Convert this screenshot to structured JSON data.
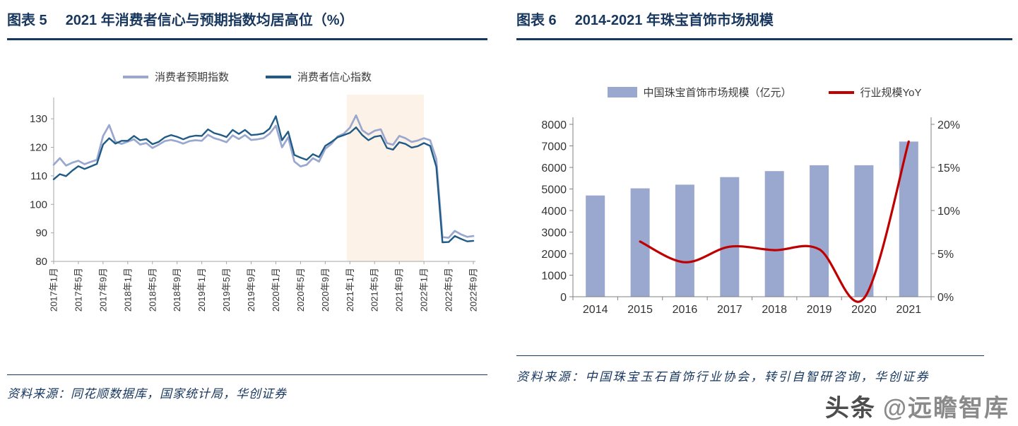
{
  "fig5": {
    "label": "图表 5",
    "title": "2021 年消费者信心与预期指数均居高位（%）",
    "source": "资料来源：同花顺数据库，国家统计局，华创证券"
  },
  "fig6": {
    "label": "图表 6",
    "title": "2014-2021 年珠宝首饰市场规模",
    "source": "资料来源：中国珠宝玉石首饰行业协会，转引自智研咨询，华创证券"
  },
  "watermark": {
    "brand": "头条",
    "handle": "@远瞻智库"
  },
  "chart_data": [
    {
      "type": "line",
      "title": "2021 年消费者信心与预期指数均居高位（%）",
      "x_description": "monthly, 2017-01 through 2022-09",
      "x_tick_every": 4,
      "x_tick_labels": [
        "2017年1月",
        "2017年5月",
        "2017年9月",
        "2018年1月",
        "2018年5月",
        "2018年9月",
        "2019年1月",
        "2019年5月",
        "2019年9月",
        "2020年1月",
        "2020年5月",
        "2020年9月",
        "2021年1月",
        "2021年5月",
        "2021年9月",
        "2022年1月",
        "2022年5月",
        "2022年9月"
      ],
      "y_ticks": [
        80,
        90,
        100,
        110,
        120,
        130
      ],
      "ylim": [
        80,
        135
      ],
      "grid": false,
      "legend_position": "top",
      "highlight_band": {
        "from_index": 47.5,
        "to_index": 60,
        "color": "#FDF2E7"
      },
      "axis_color": "#A6A6A6",
      "series": [
        {
          "name": "消费者预期指数",
          "color": "#9AA7CE",
          "values": [
            113.9,
            116.2,
            113.6,
            114.6,
            115.3,
            114.1,
            114.9,
            115.6,
            124.0,
            127.8,
            122.0,
            121.2,
            122.0,
            122.8,
            121.0,
            121.5,
            119.8,
            120.9,
            122.2,
            122.6,
            122.1,
            121.3,
            122.2,
            122.5,
            122.3,
            124.4,
            123.2,
            122.6,
            121.8,
            124.2,
            122.9,
            124.3,
            122.6,
            122.8,
            123.2,
            124.8,
            127.6,
            120.0,
            123.5,
            115.0,
            113.3,
            113.9,
            116.2,
            115.0,
            119.5,
            121.2,
            123.8,
            124.8,
            126.9,
            131.2,
            126.0,
            124.5,
            125.8,
            126.3,
            121.5,
            120.9,
            124.0,
            123.2,
            121.9,
            122.4,
            123.2,
            122.5,
            115.9,
            88.5,
            88.3,
            90.7,
            89.5,
            88.6,
            88.9
          ]
        },
        {
          "name": "消费者信心指数",
          "color": "#1F5B86",
          "values": [
            108.8,
            110.6,
            109.9,
            111.8,
            113.4,
            112.4,
            113.3,
            114.2,
            121.0,
            123.2,
            121.3,
            122.3,
            122.3,
            124.0,
            122.5,
            122.9,
            121.1,
            121.9,
            123.5,
            124.3,
            123.7,
            122.8,
            123.7,
            124.1,
            124.0,
            126.3,
            125.0,
            124.4,
            123.6,
            126.1,
            124.7,
            126.1,
            124.3,
            124.5,
            124.9,
            126.6,
            130.9,
            122.5,
            125.5,
            117.3,
            116.4,
            115.6,
            117.6,
            116.6,
            120.5,
            121.9,
            123.5,
            124.3,
            125.1,
            127.0,
            124.3,
            122.5,
            123.7,
            124.1,
            119.8,
            119.2,
            121.8,
            121.2,
            119.9,
            120.4,
            121.5,
            120.5,
            113.2,
            86.7,
            86.8,
            88.9,
            87.9,
            87.0,
            87.2
          ]
        }
      ]
    },
    {
      "type": "bar+line",
      "title": "2014-2021 年珠宝首饰市场规模",
      "categories": [
        "2014",
        "2015",
        "2016",
        "2017",
        "2018",
        "2019",
        "2020",
        "2021"
      ],
      "grid": false,
      "legend_position": "top",
      "axis_color": "#808080",
      "left_axis": {
        "lim": [
          0,
          8000
        ],
        "ticks": [
          0,
          1000,
          2000,
          3000,
          4000,
          5000,
          6000,
          7000,
          8000
        ]
      },
      "right_axis": {
        "lim": [
          0,
          20
        ],
        "ticks": [
          0,
          5,
          10,
          15,
          20
        ],
        "tick_labels": [
          "0%",
          "5%",
          "10%",
          "15%",
          "20%"
        ]
      },
      "series": [
        {
          "name": "中国珠宝首饰市场规模（亿元）",
          "type": "bar",
          "axis": "left",
          "color": "#9AA7CE",
          "values": [
            4700,
            5030,
            5200,
            5550,
            5830,
            6100,
            6100,
            7200
          ]
        },
        {
          "name": "行业规模YoY",
          "type": "line",
          "axis": "right",
          "color": "#C00000",
          "values": [
            null,
            6.4,
            4.0,
            5.8,
            5.4,
            5.5,
            -0.2,
            18.0
          ]
        }
      ]
    }
  ]
}
